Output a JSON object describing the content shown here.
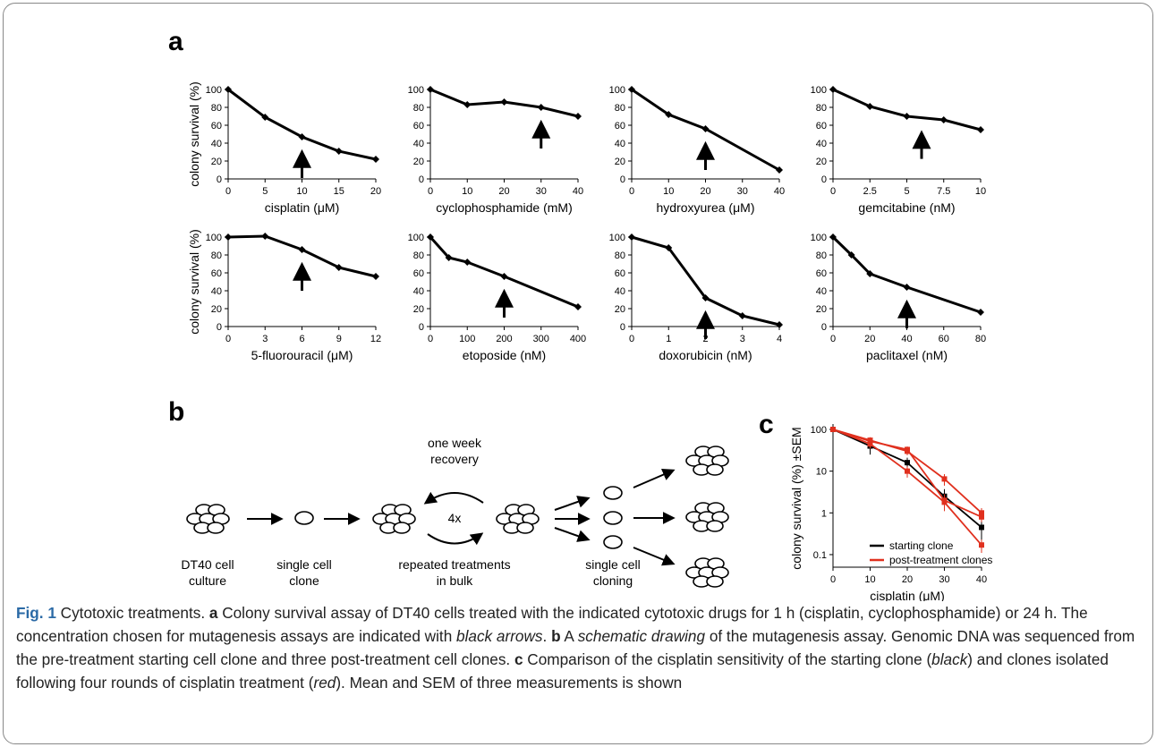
{
  "panels": {
    "a": "a",
    "b": "b",
    "c": "c"
  },
  "schematic": {
    "recovery_line1": "one week",
    "recovery_line2": "recovery",
    "repeat_label": "4x",
    "label_culture_1": "DT40 cell",
    "label_culture_2": "culture",
    "label_clone_1": "single cell",
    "label_clone_2": "clone",
    "label_bulk_1": "repeated treatments",
    "label_bulk_2": "in bulk",
    "label_cloning_1": "single cell",
    "label_cloning_2": "cloning"
  },
  "caption": {
    "fig": "Fig. 1",
    "title": " Cytotoxic treatments. ",
    "a": "a",
    "t1": " Colony survival assay of DT40 cells treated with the indicated cytotoxic drugs for 1 h (cisplatin, cyclophosphamide) or 24 h. The concentration chosen for mutagenesis assays are indicated with ",
    "i1": "black arrows",
    "t2": ". ",
    "b": "b",
    "t3": " A ",
    "i2": "schematic drawing",
    "t4": " of the mutagenesis assay. Genomic DNA was sequenced from the pre-treatment starting cell clone and three post-treatment cell clones. ",
    "c": "c",
    "t5": " Comparison of the cisplatin sensitivity of the starting clone (",
    "i3": "black",
    "t6": ") and clones isolated following four rounds of cisplatin treatment (",
    "i4": "red",
    "t7": "). Mean and SEM of three measurements is shown"
  },
  "colors": {
    "black": "#000000",
    "red": "#e0301e",
    "caption_blue": "#2b6aa6"
  },
  "chart_data": [
    {
      "type": "line",
      "xlabel": "cisplatin (μM)",
      "ylabel": "colony survival (%)",
      "x": [
        0,
        5,
        10,
        15,
        20
      ],
      "xticks": [
        "0",
        "5",
        "10",
        "15",
        "20"
      ],
      "values": [
        100,
        69,
        47,
        31,
        22
      ],
      "ylim": [
        0,
        100
      ],
      "yticks": [
        0,
        20,
        40,
        60,
        80,
        100
      ],
      "arrow_x": 10
    },
    {
      "type": "line",
      "xlabel": "cyclophosphamide (mM)",
      "ylabel": "",
      "x": [
        0,
        10,
        20,
        30,
        40
      ],
      "xticks": [
        "0",
        "10",
        "20",
        "30",
        "40"
      ],
      "values": [
        100,
        83,
        86,
        80,
        70
      ],
      "ylim": [
        0,
        100
      ],
      "yticks": [
        0,
        20,
        40,
        60,
        80,
        100
      ],
      "arrow_x": 30
    },
    {
      "type": "line",
      "xlabel": "hydroxyurea (μM)",
      "ylabel": "",
      "x": [
        0,
        10,
        20,
        40
      ],
      "xticks": [
        "0",
        "10",
        "20",
        "30",
        "40"
      ],
      "xlim": [
        0,
        40
      ],
      "values": [
        100,
        72,
        56,
        10
      ],
      "ylim": [
        0,
        100
      ],
      "yticks": [
        0,
        20,
        40,
        60,
        80,
        100
      ],
      "arrow_x": 20
    },
    {
      "type": "line",
      "xlabel": "gemcitabine (nM)",
      "ylabel": "",
      "x": [
        0,
        2.5,
        5,
        7.5,
        10
      ],
      "xticks": [
        "0",
        "2.5",
        "5",
        "7.5",
        "10"
      ],
      "values": [
        100,
        81,
        70,
        66,
        55
      ],
      "ylim": [
        0,
        100
      ],
      "yticks": [
        0,
        20,
        40,
        60,
        80,
        100
      ],
      "arrow_x": 6
    },
    {
      "type": "line",
      "xlabel": "5-fluorouracil (μM)",
      "ylabel": "colony survival (%)",
      "x": [
        0,
        3,
        6,
        9,
        12
      ],
      "xticks": [
        "0",
        "3",
        "6",
        "9",
        "12"
      ],
      "values": [
        100,
        101,
        86,
        66,
        56
      ],
      "ylim": [
        0,
        100
      ],
      "yticks": [
        0,
        20,
        40,
        60,
        80,
        100
      ],
      "arrow_x": 6
    },
    {
      "type": "line",
      "xlabel": "etoposide (nM)",
      "ylabel": "",
      "x": [
        0,
        50,
        100,
        200,
        400
      ],
      "xticks": [
        "0",
        "100",
        "200",
        "300",
        "400"
      ],
      "xlim": [
        0,
        400
      ],
      "values": [
        100,
        77,
        72,
        56,
        22
      ],
      "ylim": [
        0,
        100
      ],
      "yticks": [
        0,
        20,
        40,
        60,
        80,
        100
      ],
      "arrow_x": 200
    },
    {
      "type": "line",
      "xlabel": "doxorubicin (nM)",
      "ylabel": "",
      "x": [
        0,
        1,
        2,
        3,
        4
      ],
      "xticks": [
        "0",
        "1",
        "2",
        "3",
        "4"
      ],
      "values": [
        100,
        88,
        32,
        12,
        2
      ],
      "ylim": [
        0,
        100
      ],
      "yticks": [
        0,
        20,
        40,
        60,
        80,
        100
      ],
      "arrow_x": 2
    },
    {
      "type": "line",
      "xlabel": "paclitaxel (nM)",
      "ylabel": "",
      "x": [
        0,
        10,
        20,
        40,
        80
      ],
      "xticks": [
        "0",
        "20",
        "40",
        "60",
        "80"
      ],
      "xlim": [
        0,
        80
      ],
      "values": [
        100,
        80,
        59,
        44,
        16
      ],
      "ylim": [
        0,
        100
      ],
      "yticks": [
        0,
        20,
        40,
        60,
        80,
        100
      ],
      "arrow_x": 40
    },
    {
      "type": "line",
      "scale": "log",
      "xlabel": "cisplatin (μM)",
      "ylabel": "colony survival (%) ±SEM",
      "x": [
        0,
        10,
        20,
        30,
        40
      ],
      "xticks": [
        "0",
        "10",
        "20",
        "30",
        "40"
      ],
      "yticks": [
        "0.1",
        "1",
        "10",
        "100"
      ],
      "ylim": [
        0.05,
        100
      ],
      "series": [
        {
          "name": "starting clone",
          "color": "#000000",
          "values": [
            100,
            40,
            16,
            2.5,
            0.45
          ],
          "errors": [
            0,
            15,
            5,
            1.2,
            0.3
          ]
        },
        {
          "name": "post-treatment clones",
          "color": "#e0301e",
          "values": [
            100,
            55,
            30,
            6.5,
            1.0
          ],
          "errors": [
            0,
            10,
            6,
            2.0,
            0.3
          ]
        },
        {
          "color": "#e0301e",
          "values": [
            100,
            52,
            33,
            2.0,
            0.8
          ],
          "errors": [
            0,
            10,
            6,
            0.8,
            0.2
          ]
        },
        {
          "color": "#e0301e",
          "values": [
            100,
            45,
            10,
            1.8,
            0.17
          ],
          "errors": [
            0,
            10,
            3,
            0.7,
            0.06
          ]
        }
      ],
      "legend_position": "bottom-right"
    }
  ]
}
